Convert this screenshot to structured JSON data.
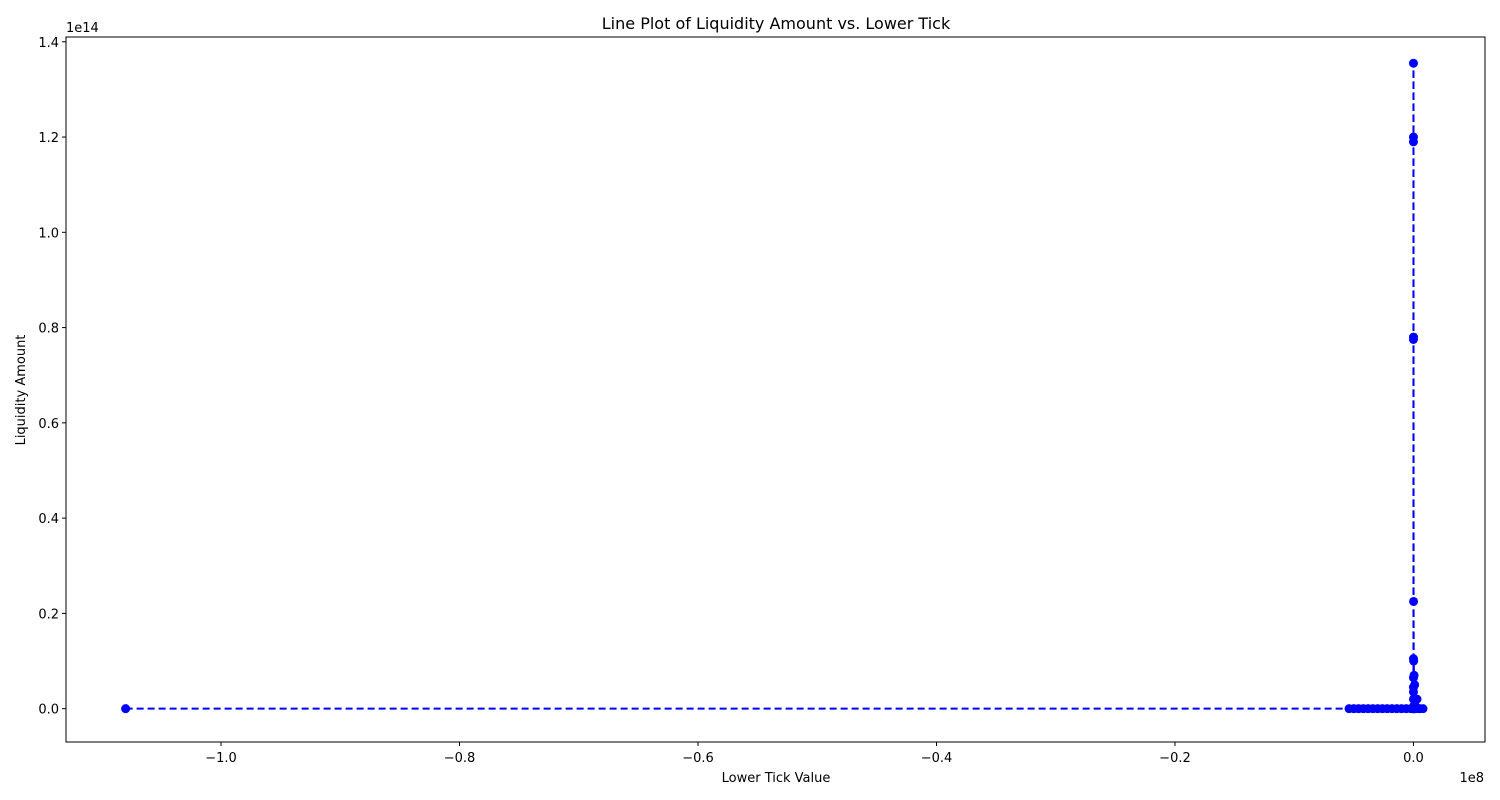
{
  "chart_data": {
    "type": "line",
    "title": "Line Plot of Liquidity Amount vs. Lower Tick",
    "xlabel": "Lower Tick Value",
    "ylabel": "Liquidity Amount",
    "x_offset_text": "1e8",
    "y_offset_text": "1e14",
    "xlim": [
      -113000000.0,
      6000000.0
    ],
    "ylim": [
      -7000000000000.0,
      141000000000000.0
    ],
    "xticks": [
      {
        "value": -100000000.0,
        "label": "−1.0"
      },
      {
        "value": -80000000.0,
        "label": "−0.8"
      },
      {
        "value": -60000000.0,
        "label": "−0.6"
      },
      {
        "value": -40000000.0,
        "label": "−0.4"
      },
      {
        "value": -20000000.0,
        "label": "−0.2"
      },
      {
        "value": 0.0,
        "label": "0.0"
      }
    ],
    "yticks": [
      {
        "value": 0.0,
        "label": "0.0"
      },
      {
        "value": 20000000000000.0,
        "label": "0.2"
      },
      {
        "value": 40000000000000.0,
        "label": "0.4"
      },
      {
        "value": 60000000000000.0,
        "label": "0.6"
      },
      {
        "value": 80000000000000.0,
        "label": "0.8"
      },
      {
        "value": 100000000000000.0,
        "label": "1.0"
      },
      {
        "value": 120000000000000.0,
        "label": "1.2"
      },
      {
        "value": 140000000000000.0,
        "label": "1.4"
      }
    ],
    "grid": false,
    "series": [
      {
        "color": "#0000ff",
        "linestyle": "dashed",
        "marker": "circle",
        "x": [
          -108000000.0,
          -5400000.0,
          -5000000.0,
          -4600000.0,
          -4200000.0,
          -3800000.0,
          -3400000.0,
          -3000000.0,
          -2600000.0,
          -2200000.0,
          -1800000.0,
          -1400000.0,
          -1000000.0,
          -600000.0,
          -200000.0,
          0,
          20000.0,
          30000.0,
          50000.0,
          100000.0,
          200000.0,
          500000.0,
          300000.0,
          100000.0,
          50000.0,
          20000.0,
          10000.0,
          5000.0,
          2000.0,
          1000.0,
          0,
          100,
          200,
          300,
          500,
          1000,
          2000,
          4000,
          6000,
          8000,
          12000.0,
          500000.0,
          800000.0
        ],
        "y": [
          0,
          0,
          0,
          0,
          0,
          0,
          0,
          0,
          0,
          0,
          0,
          0,
          0,
          0,
          0,
          0,
          0,
          0,
          0,
          0,
          0,
          0,
          2000000000000.0,
          5000000000000.0,
          7000000000000.0,
          10000000000000.0,
          22500000000000.0,
          78000000000000.0,
          120000000000000.0,
          135500000000000.0,
          119000000000000.0,
          77500000000000.0,
          10500000000000.0,
          6500000000000.0,
          4500000000000.0,
          3500000000000.0,
          2000000000000.0,
          500000000000.0,
          0,
          0,
          0,
          0,
          0
        ]
      }
    ]
  }
}
